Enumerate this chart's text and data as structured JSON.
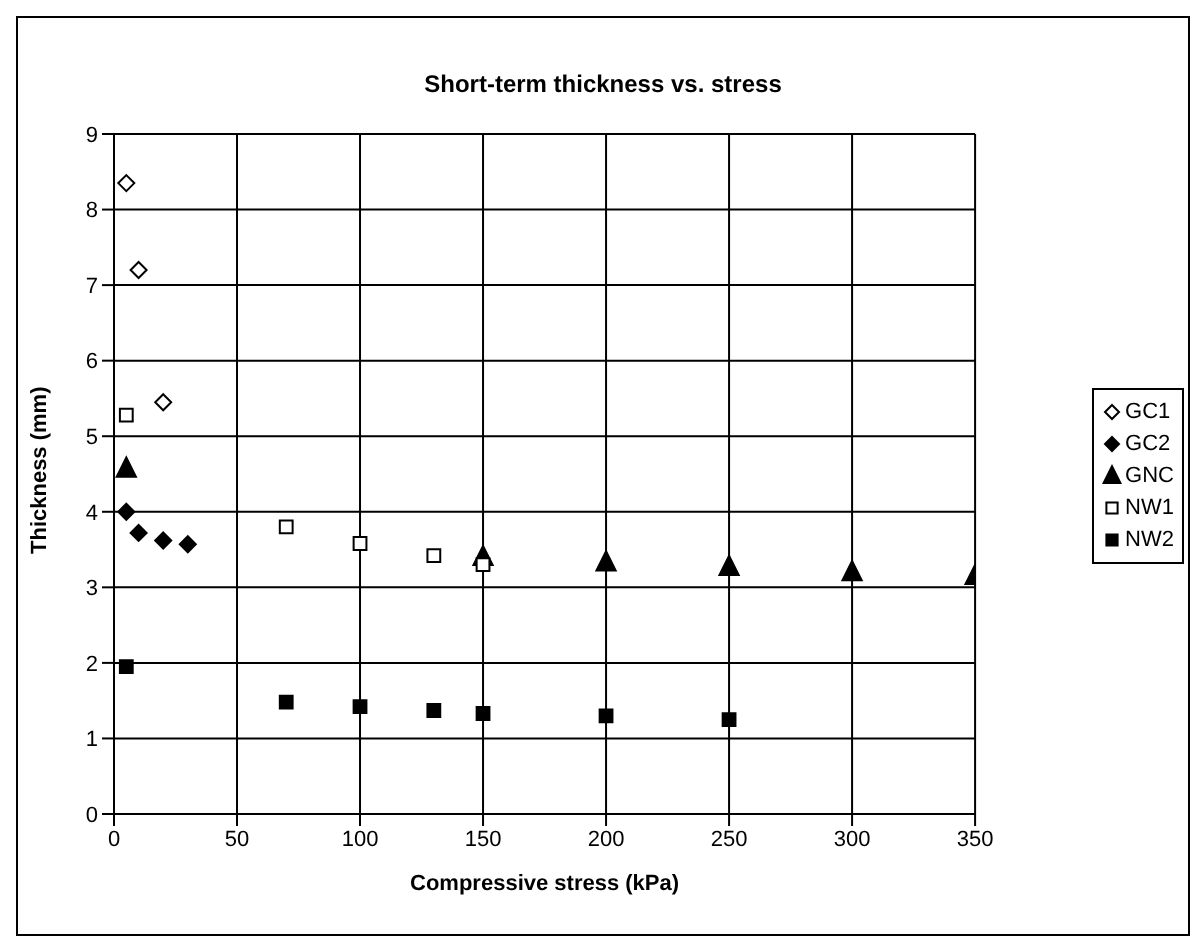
{
  "chart_data": {
    "type": "scatter",
    "title": "Short-term thickness vs. stress",
    "xlabel": "Compressive stress (kPa)",
    "ylabel": "Thickness (mm)",
    "xlim": [
      0,
      350
    ],
    "xticks": [
      0,
      50,
      100,
      150,
      200,
      250,
      300,
      350
    ],
    "ylim": [
      0,
      9
    ],
    "yticks": [
      0,
      1,
      2,
      3,
      4,
      5,
      6,
      7,
      8,
      9
    ],
    "grid": true,
    "legend": "right",
    "series": [
      {
        "name": "GC1",
        "color": "#ffffff",
        "marker": "diamond",
        "x": [
          5,
          10,
          20
        ],
        "values": [
          8.35,
          7.2,
          5.45
        ]
      },
      {
        "name": "GC2",
        "color": "#000000",
        "marker": "diamond",
        "x": [
          5,
          10,
          20,
          30
        ],
        "values": [
          4.0,
          3.72,
          3.62,
          3.57
        ]
      },
      {
        "name": "GNC",
        "color": "#000000",
        "marker": "triangle",
        "x": [
          5,
          150,
          200,
          250,
          300,
          350
        ],
        "values": [
          4.57,
          3.4,
          3.33,
          3.27,
          3.2,
          3.15
        ]
      },
      {
        "name": "NW1",
        "color": "#ffffff",
        "marker": "square",
        "x": [
          5,
          70,
          100,
          130,
          150
        ],
        "values": [
          5.28,
          3.8,
          3.58,
          3.42,
          3.3
        ]
      },
      {
        "name": "NW2",
        "color": "#000000",
        "marker": "square",
        "x": [
          5,
          70,
          100,
          130,
          150,
          200,
          250
        ],
        "values": [
          1.95,
          1.48,
          1.42,
          1.37,
          1.33,
          1.3,
          1.25
        ]
      }
    ]
  }
}
